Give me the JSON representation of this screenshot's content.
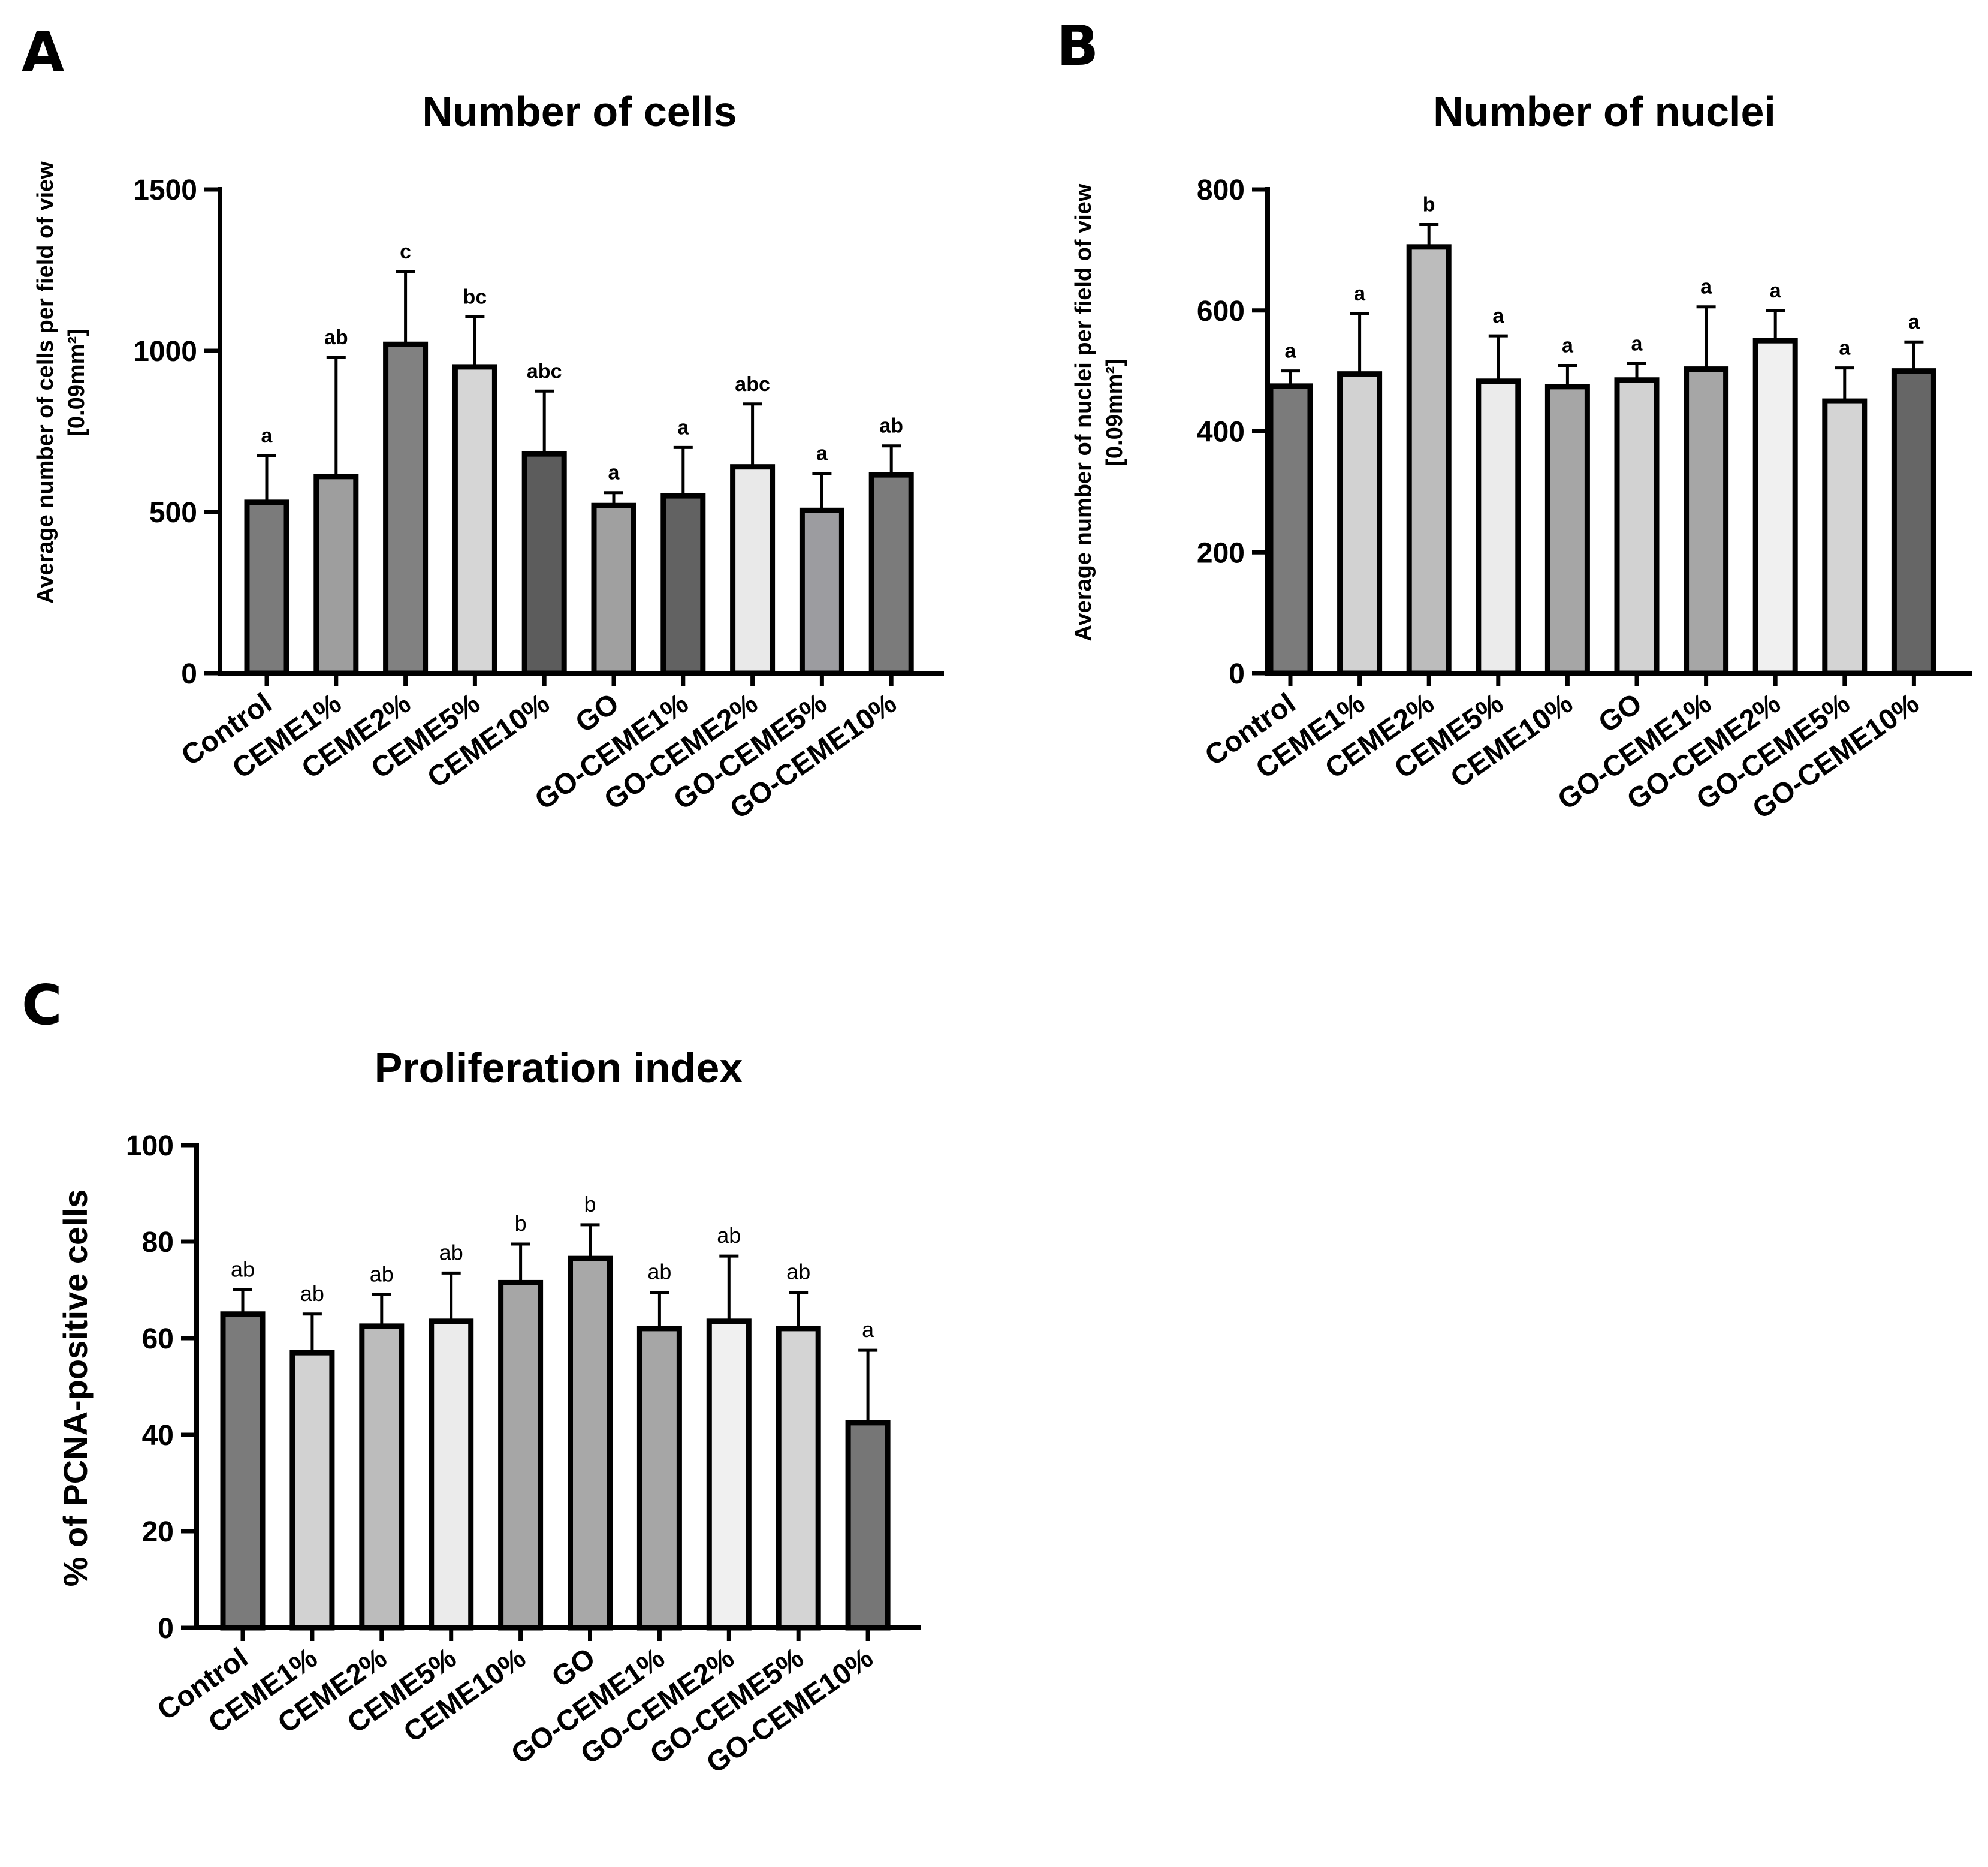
{
  "chart_data": [
    {
      "type": "bar",
      "panel_label": "A",
      "title": "Number of cells",
      "ylabel": "Average number of cells per field of view",
      "ylabel_unit": "[0.09mm²]",
      "xlabel": "",
      "ylim": [
        0,
        1500
      ],
      "yticks": [
        0,
        500,
        1000,
        1500
      ],
      "grid": false,
      "categories": [
        "Control",
        "CEME1%",
        "CEME2%",
        "CEME5%",
        "CEME10%",
        "GO",
        "GO-CEME1%",
        "GO-CEME2%",
        "GO-CEME5%",
        "GO-CEME10%"
      ],
      "values": [
        530,
        610,
        1020,
        950,
        680,
        520,
        550,
        640,
        505,
        615
      ],
      "errors": [
        145,
        370,
        225,
        155,
        195,
        40,
        150,
        195,
        115,
        90
      ],
      "significance": [
        "a",
        "ab",
        "c",
        "bc",
        "abc",
        "a",
        "a",
        "abc",
        "a",
        "ab"
      ],
      "bar_colors": [
        "#7b7b7b",
        "#9e9e9e",
        "#818181",
        "#d6d6d6",
        "#5c5c5c",
        "#a0a0a0",
        "#626262",
        "#e9e9e9",
        "#9c9ca0",
        "#7b7b7b"
      ]
    },
    {
      "type": "bar",
      "panel_label": "B",
      "title": "Number of nuclei",
      "ylabel": "Average number of nuclei per field of view",
      "ylabel_unit": "[0.09mm²]",
      "xlabel": "",
      "ylim": [
        0,
        800
      ],
      "yticks": [
        0,
        200,
        400,
        600,
        800
      ],
      "grid": false,
      "categories": [
        "Control",
        "CEME1%",
        "CEME2%",
        "CEME5%",
        "CEME10%",
        "GO",
        "GO-CEME1%",
        "GO-CEME2%",
        "GO-CEME5%",
        "GO-CEME10%"
      ],
      "values": [
        475,
        495,
        705,
        483,
        474,
        485,
        503,
        550,
        450,
        500
      ],
      "errors": [
        25,
        100,
        37,
        75,
        35,
        27,
        103,
        50,
        55,
        48
      ],
      "significance": [
        "a",
        "a",
        "b",
        "a",
        "a",
        "a",
        "a",
        "a",
        "a",
        "a"
      ],
      "bar_colors": [
        "#7b7b7b",
        "#d2d2d2",
        "#bcbcbc",
        "#ebebeb",
        "#a6a6a6",
        "#d2d2d2",
        "#a6a6a6",
        "#f0f0f0",
        "#d4d4d4",
        "#666666"
      ]
    },
    {
      "type": "bar",
      "panel_label": "C",
      "title": "Proliferation index",
      "ylabel": "% of PCNA-positive cells",
      "ylabel_unit": "",
      "xlabel": "",
      "ylim": [
        0,
        100
      ],
      "yticks": [
        0,
        20,
        40,
        60,
        80,
        100
      ],
      "grid": false,
      "categories": [
        "Control",
        "CEME1%",
        "CEME2%",
        "CEME5%",
        "CEME10%",
        "GO",
        "GO-CEME1%",
        "GO-CEME2%",
        "GO-CEME5%",
        "GO-CEME10%"
      ],
      "values": [
        65,
        57,
        62.5,
        63.5,
        71.5,
        76.5,
        62,
        63.5,
        62,
        42.5
      ],
      "errors": [
        5,
        8,
        6.5,
        10,
        8,
        7,
        7.5,
        13.5,
        7.5,
        15
      ],
      "significance": [
        "ab",
        "ab",
        "ab",
        "ab",
        "b",
        "b",
        "ab",
        "ab",
        "ab",
        "a"
      ],
      "bar_colors": [
        "#7b7b7b",
        "#d2d2d2",
        "#bcbcbc",
        "#ebebeb",
        "#a6a6a6",
        "#a8a8a8",
        "#a6a6a6",
        "#f0f0f0",
        "#d4d4d4",
        "#767676"
      ]
    }
  ]
}
